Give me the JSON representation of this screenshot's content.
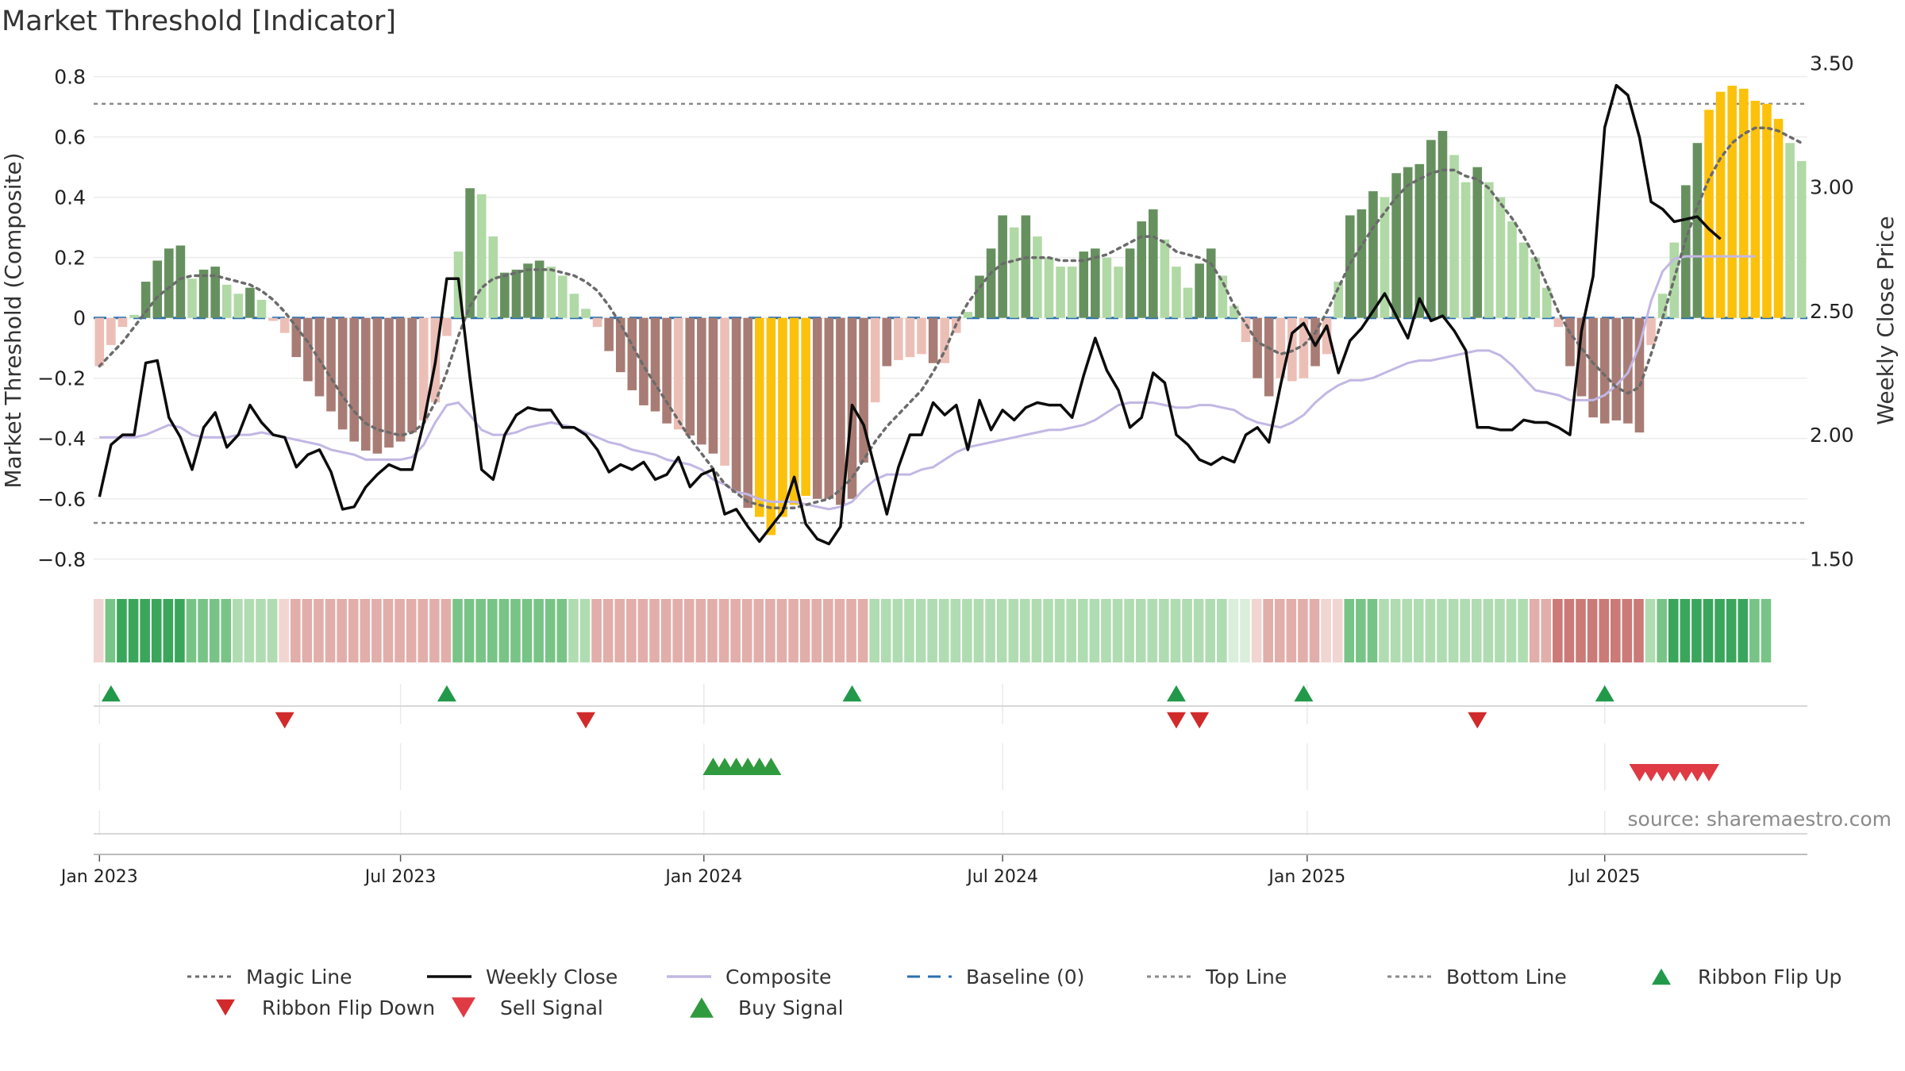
{
  "chart_data": {
    "type": "bar",
    "title": "Market Threshold [Indicator]",
    "ylabel": "Market Threshold (Composite)",
    "y2label": "Weekly Close Price",
    "source": "source: sharemaestro.com",
    "ylim": [
      -0.84,
      0.87
    ],
    "y2lim": [
      1.45,
      3.53
    ],
    "yticks": [
      "0.8",
      "0.6",
      "0.4",
      "0.2",
      "0",
      "−0.2",
      "−0.4",
      "−0.6",
      "−0.8"
    ],
    "yticks_values": [
      0.8,
      0.6,
      0.4,
      0.2,
      0,
      -0.2,
      -0.4,
      -0.6,
      -0.8
    ],
    "y2ticks": [
      "3.50",
      "3.00",
      "2.50",
      "2.00",
      "1.50"
    ],
    "y2ticks_values": [
      3.5,
      3.0,
      2.5,
      2.0,
      1.5
    ],
    "date_ticks": [
      {
        "label": "Jan 2023",
        "week": 0
      },
      {
        "label": "Jul 2023",
        "week": 26
      },
      {
        "label": "Jan 2024",
        "week": 52.2
      },
      {
        "label": "Jul 2024",
        "week": 78
      },
      {
        "label": "Jan 2025",
        "week": 104.3
      },
      {
        "label": "Jul 2025",
        "week": 130
      }
    ],
    "reference_lines": {
      "top": 0.71,
      "bottom": -0.68,
      "baseline": 0
    },
    "bar_colors": {
      "strong_up": "#66915f",
      "weak_up": "#b0d9a5",
      "strong_down": "#a87c74",
      "weak_down": "#ecbfb6",
      "extreme": "#fcc10a"
    },
    "line_colors": {
      "magic": "#6b6b6b",
      "weekly_close": "#0c0c0c",
      "composite": "#c2b7e4",
      "baseline": "#2b6fb0",
      "threshold": "#8a8a8a"
    },
    "series": [
      {
        "name": "Histogram",
        "values": [
          -0.16,
          -0.09,
          -0.03,
          0.01,
          0.12,
          0.19,
          0.23,
          0.24,
          0.13,
          0.16,
          0.17,
          0.11,
          0.08,
          0.1,
          0.06,
          -0.01,
          -0.05,
          -0.13,
          -0.21,
          -0.26,
          -0.31,
          -0.37,
          -0.41,
          -0.44,
          -0.45,
          -0.43,
          -0.41,
          -0.38,
          -0.34,
          -0.28,
          -0.06,
          0.22,
          0.43,
          0.41,
          0.27,
          0.15,
          0.16,
          0.18,
          0.19,
          0.17,
          0.14,
          0.08,
          0.03,
          -0.03,
          -0.11,
          -0.18,
          -0.24,
          -0.29,
          -0.31,
          -0.35,
          -0.37,
          -0.39,
          -0.42,
          -0.45,
          -0.49,
          -0.58,
          -0.63,
          -0.66,
          -0.72,
          -0.66,
          -0.62,
          -0.59,
          -0.6,
          -0.6,
          -0.62,
          -0.6,
          -0.48,
          -0.28,
          -0.16,
          -0.14,
          -0.13,
          -0.12,
          -0.15,
          -0.15,
          -0.05,
          0.02,
          0.14,
          0.23,
          0.34,
          0.3,
          0.34,
          0.27,
          0.2,
          0.17,
          0.17,
          0.22,
          0.23,
          0.2,
          0.17,
          0.23,
          0.32,
          0.36,
          0.26,
          0.17,
          0.1,
          0.18,
          0.23,
          0.14,
          0.04,
          -0.08,
          -0.2,
          -0.26,
          -0.2,
          -0.21,
          -0.2,
          -0.16,
          -0.12,
          0.12,
          0.34,
          0.36,
          0.42,
          0.4,
          0.48,
          0.5,
          0.51,
          0.59,
          0.62,
          0.54,
          0.45,
          0.5,
          0.45,
          0.4,
          0.32,
          0.25,
          0.2,
          0.1,
          -0.03,
          -0.16,
          -0.26,
          -0.33,
          -0.35,
          -0.34,
          -0.35,
          -0.38,
          -0.09,
          0.08,
          0.25,
          0.44,
          0.58,
          0.69,
          0.75,
          0.77,
          0.76,
          0.72,
          0.71,
          0.66,
          0.58,
          0.52
        ],
        "colors": [
          "wd",
          "wd",
          "wd",
          "wu",
          "su",
          "su",
          "su",
          "su",
          "wu",
          "su",
          "su",
          "wu",
          "wu",
          "su",
          "wu",
          "wd",
          "wd",
          "sd",
          "sd",
          "sd",
          "sd",
          "sd",
          "sd",
          "sd",
          "sd",
          "sd",
          "sd",
          "sd",
          "wd",
          "wd",
          "wd",
          "wu",
          "su",
          "wu",
          "wu",
          "su",
          "su",
          "su",
          "su",
          "wu",
          "wu",
          "wu",
          "wu",
          "wd",
          "sd",
          "sd",
          "sd",
          "sd",
          "sd",
          "sd",
          "wd",
          "sd",
          "sd",
          "sd",
          "wd",
          "sd",
          "sd",
          "ex",
          "ex",
          "ex",
          "ex",
          "ex",
          "sd",
          "sd",
          "sd",
          "sd",
          "sd",
          "wd",
          "sd",
          "wd",
          "wd",
          "wd",
          "sd",
          "wd",
          "wd",
          "wu",
          "su",
          "su",
          "su",
          "wu",
          "su",
          "wu",
          "wu",
          "wu",
          "wu",
          "su",
          "su",
          "wu",
          "wu",
          "su",
          "su",
          "su",
          "wu",
          "wu",
          "wu",
          "su",
          "su",
          "wu",
          "wu",
          "wd",
          "sd",
          "sd",
          "wd",
          "wd",
          "wd",
          "sd",
          "wd",
          "wu",
          "su",
          "su",
          "su",
          "wu",
          "su",
          "su",
          "su",
          "su",
          "su",
          "wu",
          "wu",
          "su",
          "wu",
          "wu",
          "wu",
          "wu",
          "wu",
          "wu",
          "wd",
          "sd",
          "sd",
          "sd",
          "sd",
          "sd",
          "sd",
          "sd",
          "wd",
          "wu",
          "wu",
          "su",
          "su",
          "ex",
          "ex",
          "ex",
          "ex",
          "ex",
          "ex",
          "ex",
          "wu",
          "wu",
          "wu"
        ]
      },
      {
        "name": "Weekly Close",
        "values": [
          1.75,
          1.96,
          2.0,
          2.0,
          2.29,
          2.3,
          2.07,
          1.99,
          1.86,
          2.03,
          2.09,
          1.95,
          2.0,
          2.12,
          2.05,
          2.0,
          1.99,
          1.87,
          1.92,
          1.94,
          1.85,
          1.7,
          1.71,
          1.79,
          1.84,
          1.88,
          1.86,
          1.86,
          2.05,
          2.29,
          2.63,
          2.63,
          2.23,
          1.86,
          1.82,
          2.0,
          2.08,
          2.11,
          2.1,
          2.1,
          2.03,
          2.03,
          2.0,
          1.94,
          1.85,
          1.88,
          1.86,
          1.89,
          1.82,
          1.84,
          1.91,
          1.79,
          1.84,
          1.86,
          1.68,
          1.7,
          1.63,
          1.57,
          1.63,
          1.69,
          1.83,
          1.64,
          1.58,
          1.56,
          1.63,
          2.12,
          2.04,
          1.86,
          1.68,
          1.87,
          2.0,
          2.0,
          2.13,
          2.08,
          2.12,
          1.94,
          2.14,
          2.02,
          2.1,
          2.06,
          2.11,
          2.13,
          2.12,
          2.12,
          2.07,
          2.24,
          2.39,
          2.26,
          2.18,
          2.03,
          2.07,
          2.25,
          2.21,
          2.0,
          1.96,
          1.9,
          1.88,
          1.91,
          1.89,
          2.0,
          2.03,
          1.97,
          2.2,
          2.41,
          2.45,
          2.36,
          2.44,
          2.25,
          2.38,
          2.43,
          2.5,
          2.57,
          2.48,
          2.39,
          2.55,
          2.46,
          2.48,
          2.42,
          2.34,
          2.03,
          2.03,
          2.02,
          2.02,
          2.06,
          2.05,
          2.05,
          2.03,
          2.0,
          2.42,
          2.64,
          3.24,
          3.41,
          3.37,
          3.2,
          2.94,
          2.91,
          2.86,
          2.87,
          2.88,
          2.83,
          2.79
        ]
      },
      {
        "name": "Magic Line",
        "values": [
          -0.16,
          -0.12,
          -0.08,
          -0.03,
          0.02,
          0.07,
          0.1,
          0.13,
          0.14,
          0.14,
          0.14,
          0.13,
          0.12,
          0.11,
          0.09,
          0.06,
          0.02,
          -0.03,
          -0.08,
          -0.14,
          -0.2,
          -0.26,
          -0.31,
          -0.35,
          -0.37,
          -0.38,
          -0.39,
          -0.38,
          -0.35,
          -0.28,
          -0.18,
          -0.06,
          0.04,
          0.1,
          0.13,
          0.14,
          0.15,
          0.16,
          0.16,
          0.16,
          0.15,
          0.14,
          0.12,
          0.09,
          0.04,
          -0.02,
          -0.09,
          -0.16,
          -0.22,
          -0.28,
          -0.34,
          -0.4,
          -0.45,
          -0.5,
          -0.55,
          -0.58,
          -0.61,
          -0.62,
          -0.63,
          -0.63,
          -0.63,
          -0.62,
          -0.61,
          -0.6,
          -0.57,
          -0.53,
          -0.47,
          -0.41,
          -0.36,
          -0.32,
          -0.28,
          -0.24,
          -0.18,
          -0.11,
          -0.02,
          0.05,
          0.1,
          0.15,
          0.18,
          0.19,
          0.2,
          0.2,
          0.2,
          0.19,
          0.19,
          0.19,
          0.2,
          0.21,
          0.23,
          0.25,
          0.27,
          0.27,
          0.25,
          0.22,
          0.21,
          0.2,
          0.18,
          0.12,
          0.04,
          -0.02,
          -0.08,
          -0.1,
          -0.12,
          -0.11,
          -0.09,
          -0.05,
          0.02,
          0.1,
          0.18,
          0.24,
          0.3,
          0.35,
          0.4,
          0.44,
          0.46,
          0.48,
          0.49,
          0.49,
          0.47,
          0.46,
          0.43,
          0.38,
          0.33,
          0.27,
          0.2,
          0.11,
          0.02,
          -0.05,
          -0.1,
          -0.15,
          -0.19,
          -0.23,
          -0.25,
          -0.23,
          -0.12,
          0.0,
          0.13,
          0.26,
          0.37,
          0.46,
          0.53,
          0.58,
          0.61,
          0.63,
          0.63,
          0.62,
          0.6,
          0.58
        ]
      },
      {
        "name": "Composite",
        "values": [
          1.99,
          1.99,
          1.99,
          1.99,
          2.0,
          2.02,
          2.04,
          2.03,
          2.0,
          1.99,
          1.99,
          1.99,
          2.0,
          2.0,
          2.01,
          2.0,
          1.99,
          1.98,
          1.97,
          1.96,
          1.94,
          1.93,
          1.92,
          1.9,
          1.9,
          1.9,
          1.9,
          1.91,
          1.96,
          2.05,
          2.12,
          2.13,
          2.08,
          2.02,
          2.0,
          2.0,
          2.01,
          2.03,
          2.04,
          2.05,
          2.04,
          2.03,
          2.01,
          1.99,
          1.97,
          1.96,
          1.94,
          1.93,
          1.92,
          1.9,
          1.89,
          1.88,
          1.86,
          1.82,
          1.8,
          1.77,
          1.76,
          1.74,
          1.73,
          1.73,
          1.73,
          1.72,
          1.71,
          1.7,
          1.71,
          1.73,
          1.78,
          1.82,
          1.84,
          1.84,
          1.84,
          1.86,
          1.87,
          1.9,
          1.93,
          1.95,
          1.96,
          1.97,
          1.98,
          1.99,
          2.0,
          2.01,
          2.02,
          2.02,
          2.03,
          2.04,
          2.06,
          2.09,
          2.12,
          2.13,
          2.13,
          2.13,
          2.12,
          2.11,
          2.11,
          2.12,
          2.12,
          2.11,
          2.1,
          2.07,
          2.05,
          2.04,
          2.03,
          2.05,
          2.08,
          2.13,
          2.17,
          2.2,
          2.22,
          2.22,
          2.23,
          2.25,
          2.27,
          2.29,
          2.3,
          2.3,
          2.31,
          2.32,
          2.33,
          2.34,
          2.34,
          2.32,
          2.28,
          2.23,
          2.18,
          2.17,
          2.16,
          2.14,
          2.14,
          2.14,
          2.16,
          2.2,
          2.25,
          2.36,
          2.54,
          2.66,
          2.71,
          2.72,
          2.72,
          2.72,
          2.72,
          2.72,
          2.72,
          2.72
        ]
      }
    ],
    "ribbon": [
      -1,
      2,
      3,
      3,
      3,
      3,
      3,
      3,
      2,
      2,
      2,
      2,
      1,
      1,
      1,
      1,
      -1,
      -2,
      -2,
      -2,
      -2,
      -2,
      -2,
      -2,
      -2,
      -2,
      -2,
      -2,
      -2,
      -2,
      -2,
      2,
      2,
      2,
      2,
      2,
      2,
      2,
      2,
      2,
      2,
      1,
      1,
      -2,
      -2,
      -2,
      -2,
      -2,
      -2,
      -2,
      -2,
      -2,
      -2,
      -2,
      -2,
      -2,
      -2,
      -2,
      -2,
      -2,
      -2,
      -2,
      -2,
      -2,
      -2,
      -2,
      -2,
      1,
      1,
      1,
      1,
      1,
      1,
      1,
      1,
      1,
      1,
      1,
      1,
      1,
      1,
      1,
      1,
      1,
      1,
      1,
      1,
      1,
      1,
      1,
      1,
      1,
      1,
      1,
      1,
      1,
      1,
      1,
      0,
      0,
      -1,
      -2,
      -2,
      -2,
      -2,
      -2,
      -1,
      -1,
      2,
      2,
      2,
      1,
      1,
      1,
      1,
      1,
      1,
      1,
      1,
      1,
      1,
      1,
      1,
      1,
      -2,
      -2,
      -3,
      -3,
      -3,
      -3,
      -3,
      -3,
      -3,
      -3,
      1,
      2,
      3,
      3,
      3,
      3,
      3,
      3,
      3,
      2,
      2
    ],
    "ribbon_flips": [
      {
        "week": 1,
        "dir": "up"
      },
      {
        "week": 16,
        "dir": "down"
      },
      {
        "week": 30,
        "dir": "up"
      },
      {
        "week": 42,
        "dir": "down"
      },
      {
        "week": 65,
        "dir": "up"
      },
      {
        "week": 93,
        "dir": "down"
      },
      {
        "week": 95,
        "dir": "down"
      },
      {
        "week": 93,
        "dir": "up"
      },
      {
        "week": 104,
        "dir": "up"
      },
      {
        "week": 119,
        "dir": "down"
      },
      {
        "week": 130,
        "dir": "up"
      }
    ],
    "buy_signals": [
      53,
      54,
      55,
      56,
      57,
      58
    ],
    "sell_signals": [
      133,
      134,
      135,
      136,
      137,
      138,
      139
    ]
  },
  "legend": [
    {
      "key": "magic",
      "label": "Magic Line",
      "style": "dotted",
      "color": "#6b6b6b"
    },
    {
      "key": "close",
      "label": "Weekly Close",
      "style": "solid",
      "color": "#0c0c0c"
    },
    {
      "key": "composite",
      "label": "Composite",
      "style": "solid",
      "color": "#c2b7e4"
    },
    {
      "key": "baseline",
      "label": "Baseline (0)",
      "style": "dashed",
      "color": "#2b6fb0"
    },
    {
      "key": "top",
      "label": "Top Line",
      "style": "dotted",
      "color": "#8a8a8a"
    },
    {
      "key": "bottom",
      "label": "Bottom Line",
      "style": "dotted",
      "color": "#8a8a8a"
    },
    {
      "key": "flip-up",
      "label": "Ribbon Flip Up",
      "style": "tri-up",
      "color": "#22994a"
    },
    {
      "key": "flip-down",
      "label": "Ribbon Flip Down",
      "style": "tri-down",
      "color": "#d12a2a"
    },
    {
      "key": "sell",
      "label": "Sell Signal",
      "style": "tri-down-lg",
      "color": "#e03a45"
    },
    {
      "key": "buy",
      "label": "Buy Signal",
      "style": "tri-up-lg",
      "color": "#2f9a3e"
    }
  ]
}
